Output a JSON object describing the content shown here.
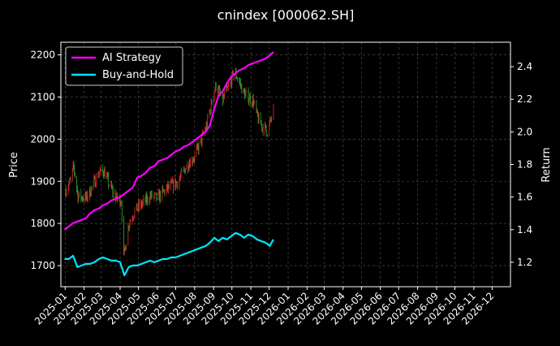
{
  "chart_data": {
    "type": "line",
    "title": "cnindex [000062.SH]",
    "ylabel_left": "Price",
    "ylabel_right": "Return",
    "background_color": "#000000",
    "grid": true,
    "legend_position": "top-left",
    "xlim": [
      "2024-12-25",
      "2026-12-31"
    ],
    "ylim_left": [
      1650,
      2230
    ],
    "ylim_right": [
      1.05,
      2.55
    ],
    "x_ticks": [
      "2025-01",
      "2025-02",
      "2025-03",
      "2025-04",
      "2025-05",
      "2025-06",
      "2025-07",
      "2025-08",
      "2025-09",
      "2025-10",
      "2025-11",
      "2025-12",
      "2026-01",
      "2026-02",
      "2026-03",
      "2026-04",
      "2026-05",
      "2026-06",
      "2026-07",
      "2026-08",
      "2026-09",
      "2026-10",
      "2026-11",
      "2026-12"
    ],
    "y_ticks_left": [
      1700,
      1800,
      1900,
      2000,
      2100,
      2200
    ],
    "y_ticks_right": [
      1.2,
      1.4,
      1.6,
      1.8,
      2.0,
      2.2,
      2.4
    ],
    "candles": {
      "up_color": "#d62728",
      "down_color": "#2ca02c",
      "price_path": [
        [
          "2025-01-02",
          1880
        ],
        [
          "2025-01-10",
          1900
        ],
        [
          "2025-01-15",
          1935
        ],
        [
          "2025-01-22",
          1865
        ],
        [
          "2025-02-05",
          1860
        ],
        [
          "2025-02-12",
          1880
        ],
        [
          "2025-02-25",
          1920
        ],
        [
          "2025-03-05",
          1925
        ],
        [
          "2025-03-15",
          1890
        ],
        [
          "2025-03-25",
          1860
        ],
        [
          "2025-04-03",
          1855
        ],
        [
          "2025-04-07",
          1720
        ],
        [
          "2025-04-15",
          1800
        ],
        [
          "2025-04-25",
          1830
        ],
        [
          "2025-05-10",
          1850
        ],
        [
          "2025-05-20",
          1865
        ],
        [
          "2025-06-01",
          1860
        ],
        [
          "2025-06-15",
          1880
        ],
        [
          "2025-06-25",
          1890
        ],
        [
          "2025-07-05",
          1900
        ],
        [
          "2025-07-20",
          1940
        ],
        [
          "2025-08-01",
          1960
        ],
        [
          "2025-08-10",
          1990
        ],
        [
          "2025-08-20",
          2030
        ],
        [
          "2025-08-28",
          2080
        ],
        [
          "2025-09-05",
          2130
        ],
        [
          "2025-09-15",
          2090
        ],
        [
          "2025-09-25",
          2120
        ],
        [
          "2025-10-05",
          2160
        ],
        [
          "2025-10-12",
          2140
        ],
        [
          "2025-10-20",
          2110
        ],
        [
          "2025-10-28",
          2100
        ],
        [
          "2025-11-05",
          2090
        ],
        [
          "2025-11-12",
          2050
        ],
        [
          "2025-11-20",
          2030
        ],
        [
          "2025-11-28",
          2020
        ],
        [
          "2025-12-03",
          2040
        ],
        [
          "2025-12-08",
          2070
        ]
      ]
    },
    "series": [
      {
        "name": "AI Strategy",
        "color": "#ff00ff",
        "axis": "right",
        "points": [
          [
            "2024-12-31",
            1.4
          ],
          [
            "2025-01-07",
            1.42
          ],
          [
            "2025-01-14",
            1.44
          ],
          [
            "2025-01-21",
            1.45
          ],
          [
            "2025-01-28",
            1.46
          ],
          [
            "2025-02-04",
            1.47
          ],
          [
            "2025-02-11",
            1.5
          ],
          [
            "2025-02-18",
            1.52
          ],
          [
            "2025-02-25",
            1.53
          ],
          [
            "2025-03-04",
            1.55
          ],
          [
            "2025-03-11",
            1.56
          ],
          [
            "2025-03-18",
            1.58
          ],
          [
            "2025-03-25",
            1.59
          ],
          [
            "2025-04-01",
            1.6
          ],
          [
            "2025-04-08",
            1.62
          ],
          [
            "2025-04-15",
            1.64
          ],
          [
            "2025-04-22",
            1.66
          ],
          [
            "2025-04-29",
            1.72
          ],
          [
            "2025-05-06",
            1.73
          ],
          [
            "2025-05-13",
            1.75
          ],
          [
            "2025-05-20",
            1.78
          ],
          [
            "2025-05-27",
            1.79
          ],
          [
            "2025-06-03",
            1.82
          ],
          [
            "2025-06-10",
            1.83
          ],
          [
            "2025-06-17",
            1.84
          ],
          [
            "2025-06-24",
            1.86
          ],
          [
            "2025-07-01",
            1.88
          ],
          [
            "2025-07-08",
            1.89
          ],
          [
            "2025-07-15",
            1.91
          ],
          [
            "2025-07-22",
            1.92
          ],
          [
            "2025-07-29",
            1.94
          ],
          [
            "2025-08-05",
            1.96
          ],
          [
            "2025-08-12",
            1.98
          ],
          [
            "2025-08-19",
            2.0
          ],
          [
            "2025-08-26",
            2.04
          ],
          [
            "2025-09-02",
            2.14
          ],
          [
            "2025-09-09",
            2.22
          ],
          [
            "2025-09-16",
            2.25
          ],
          [
            "2025-09-23",
            2.3
          ],
          [
            "2025-09-30",
            2.34
          ],
          [
            "2025-10-07",
            2.36
          ],
          [
            "2025-10-14",
            2.38
          ],
          [
            "2025-10-21",
            2.39
          ],
          [
            "2025-10-28",
            2.41
          ],
          [
            "2025-11-04",
            2.42
          ],
          [
            "2025-11-11",
            2.43
          ],
          [
            "2025-11-18",
            2.44
          ],
          [
            "2025-11-25",
            2.45
          ],
          [
            "2025-12-02",
            2.47
          ],
          [
            "2025-12-08",
            2.49
          ]
        ]
      },
      {
        "name": "Buy-and-Hold",
        "color": "#00e5ff",
        "axis": "right",
        "points": [
          [
            "2024-12-31",
            1.22
          ],
          [
            "2025-01-07",
            1.22
          ],
          [
            "2025-01-14",
            1.24
          ],
          [
            "2025-01-21",
            1.17
          ],
          [
            "2025-01-28",
            1.18
          ],
          [
            "2025-02-04",
            1.19
          ],
          [
            "2025-02-11",
            1.19
          ],
          [
            "2025-02-18",
            1.2
          ],
          [
            "2025-02-25",
            1.22
          ],
          [
            "2025-03-04",
            1.23
          ],
          [
            "2025-03-11",
            1.22
          ],
          [
            "2025-03-18",
            1.21
          ],
          [
            "2025-03-25",
            1.21
          ],
          [
            "2025-04-01",
            1.2
          ],
          [
            "2025-04-08",
            1.12
          ],
          [
            "2025-04-15",
            1.17
          ],
          [
            "2025-04-22",
            1.18
          ],
          [
            "2025-04-29",
            1.18
          ],
          [
            "2025-05-06",
            1.19
          ],
          [
            "2025-05-13",
            1.2
          ],
          [
            "2025-05-20",
            1.21
          ],
          [
            "2025-05-27",
            1.2
          ],
          [
            "2025-06-03",
            1.21
          ],
          [
            "2025-06-10",
            1.22
          ],
          [
            "2025-06-17",
            1.22
          ],
          [
            "2025-06-24",
            1.23
          ],
          [
            "2025-07-01",
            1.23
          ],
          [
            "2025-07-08",
            1.24
          ],
          [
            "2025-07-15",
            1.25
          ],
          [
            "2025-07-22",
            1.26
          ],
          [
            "2025-07-29",
            1.27
          ],
          [
            "2025-08-05",
            1.28
          ],
          [
            "2025-08-12",
            1.29
          ],
          [
            "2025-08-19",
            1.3
          ],
          [
            "2025-08-26",
            1.32
          ],
          [
            "2025-09-02",
            1.35
          ],
          [
            "2025-09-09",
            1.33
          ],
          [
            "2025-09-16",
            1.35
          ],
          [
            "2025-09-23",
            1.34
          ],
          [
            "2025-09-30",
            1.36
          ],
          [
            "2025-10-07",
            1.38
          ],
          [
            "2025-10-14",
            1.37
          ],
          [
            "2025-10-21",
            1.35
          ],
          [
            "2025-10-28",
            1.37
          ],
          [
            "2025-11-04",
            1.36
          ],
          [
            "2025-11-11",
            1.34
          ],
          [
            "2025-11-18",
            1.33
          ],
          [
            "2025-11-25",
            1.32
          ],
          [
            "2025-12-02",
            1.3
          ],
          [
            "2025-12-08",
            1.34
          ]
        ]
      }
    ]
  }
}
